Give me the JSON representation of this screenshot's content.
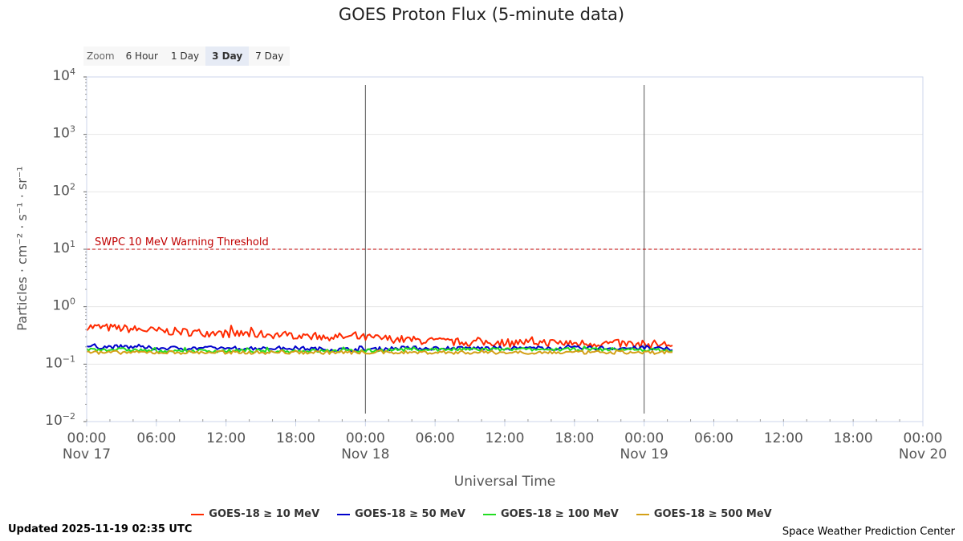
{
  "zoom": {
    "label": "Zoom",
    "buttons": [
      "6 Hour",
      "1 Day",
      "3 Day",
      "7 Day"
    ],
    "active": "3 Day"
  },
  "footer": {
    "updated": "Updated 2025-11-19 02:35 UTC",
    "credit": "Space Weather Prediction Center"
  },
  "chart_data": {
    "type": "line",
    "title": "GOES Proton Flux (5-minute data)",
    "xlabel": "Universal Time",
    "ylabel": "Particles · cm⁻² · s⁻¹ · sr⁻¹",
    "y_scale": "log",
    "ylim": [
      0.01,
      10000
    ],
    "y_ticks": [
      {
        "base": "10",
        "exp": "4"
      },
      {
        "base": "10",
        "exp": "3"
      },
      {
        "base": "10",
        "exp": "2"
      },
      {
        "base": "10",
        "exp": "1"
      },
      {
        "base": "10",
        "exp": "0"
      },
      {
        "base": "10",
        "exp": "−1"
      },
      {
        "base": "10",
        "exp": "−2"
      }
    ],
    "xlim": [
      "2025-11-17 00:00",
      "2025-11-20 00:00"
    ],
    "x_ticks": [
      {
        "time": "00:00",
        "date": "Nov 17"
      },
      {
        "time": "06:00",
        "date": ""
      },
      {
        "time": "12:00",
        "date": ""
      },
      {
        "time": "18:00",
        "date": ""
      },
      {
        "time": "00:00",
        "date": "Nov 18"
      },
      {
        "time": "06:00",
        "date": ""
      },
      {
        "time": "12:00",
        "date": ""
      },
      {
        "time": "18:00",
        "date": ""
      },
      {
        "time": "00:00",
        "date": "Nov 19"
      },
      {
        "time": "06:00",
        "date": ""
      },
      {
        "time": "12:00",
        "date": ""
      },
      {
        "time": "18:00",
        "date": ""
      },
      {
        "time": "00:00",
        "date": "Nov 20"
      }
    ],
    "day_boundaries": [
      "2025-11-18 00:00",
      "2025-11-19 00:00"
    ],
    "threshold": {
      "label": "SWPC 10 MeV Warning Threshold",
      "value": 10,
      "color": "#c00000"
    },
    "x": [
      "2025-11-17 00:00",
      "2025-11-17 03:00",
      "2025-11-17 06:00",
      "2025-11-17 09:00",
      "2025-11-17 12:00",
      "2025-11-17 15:00",
      "2025-11-17 18:00",
      "2025-11-17 21:00",
      "2025-11-18 00:00",
      "2025-11-18 03:00",
      "2025-11-18 06:00",
      "2025-11-18 09:00",
      "2025-11-18 12:00",
      "2025-11-18 15:00",
      "2025-11-18 18:00",
      "2025-11-18 21:00",
      "2025-11-19 00:00",
      "2025-11-19 02:35"
    ],
    "series": [
      {
        "name": "GOES-18 ≥ 10 MeV",
        "color": "#ff2a00",
        "values": [
          0.45,
          0.42,
          0.38,
          0.36,
          0.34,
          0.33,
          0.32,
          0.3,
          0.29,
          0.27,
          0.25,
          0.24,
          0.24,
          0.24,
          0.23,
          0.23,
          0.22,
          0.22
        ]
      },
      {
        "name": "GOES-18 ≥ 50 MeV",
        "color": "#0000cc",
        "values": [
          0.2,
          0.2,
          0.19,
          0.19,
          0.19,
          0.19,
          0.19,
          0.18,
          0.18,
          0.19,
          0.19,
          0.19,
          0.19,
          0.19,
          0.19,
          0.19,
          0.19,
          0.18
        ]
      },
      {
        "name": "GOES-18 ≥ 100 MeV",
        "color": "#22dd22",
        "values": [
          0.18,
          0.18,
          0.17,
          0.17,
          0.17,
          0.17,
          0.17,
          0.17,
          0.17,
          0.18,
          0.18,
          0.18,
          0.18,
          0.18,
          0.18,
          0.18,
          0.18,
          0.17
        ]
      },
      {
        "name": "GOES-18 ≥ 500 MeV",
        "color": "#d4a017",
        "values": [
          0.16,
          0.16,
          0.16,
          0.16,
          0.16,
          0.16,
          0.16,
          0.16,
          0.16,
          0.16,
          0.16,
          0.16,
          0.16,
          0.16,
          0.16,
          0.16,
          0.16,
          0.16
        ]
      }
    ],
    "legend_position": "bottom"
  }
}
